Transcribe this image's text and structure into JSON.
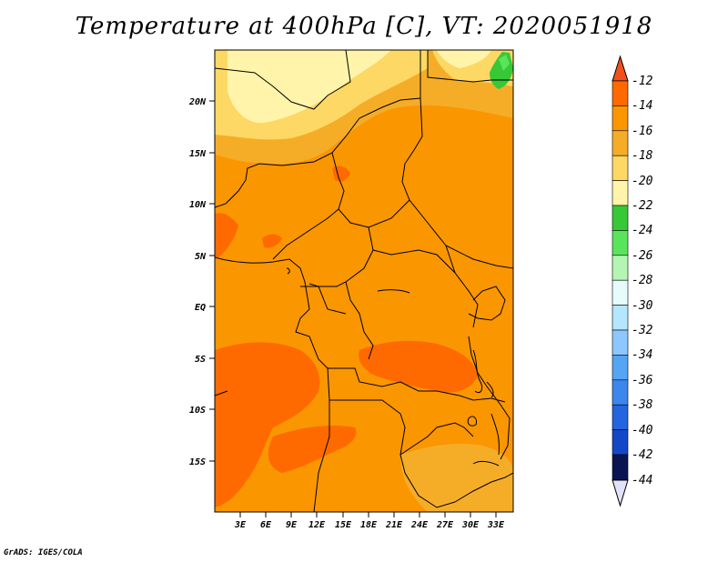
{
  "title": "Temperature at 400hPa [C], VT: 2020051918",
  "credit": "GrADS: IGES/COLA",
  "map": {
    "lon_range": [
      0,
      35
    ],
    "lat_range": [
      -20,
      25
    ],
    "lat_ticks": [
      {
        "value": 20,
        "label": "20N"
      },
      {
        "value": 15,
        "label": "15N"
      },
      {
        "value": 10,
        "label": "10N"
      },
      {
        "value": 5,
        "label": "5N"
      },
      {
        "value": 0,
        "label": "EQ"
      },
      {
        "value": -5,
        "label": "5S"
      },
      {
        "value": -10,
        "label": "10S"
      },
      {
        "value": -15,
        "label": "15S"
      }
    ],
    "lon_ticks": [
      {
        "value": 3,
        "label": "3E"
      },
      {
        "value": 6,
        "label": "6E"
      },
      {
        "value": 9,
        "label": "9E"
      },
      {
        "value": 12,
        "label": "12E"
      },
      {
        "value": 15,
        "label": "15E"
      },
      {
        "value": 18,
        "label": "18E"
      },
      {
        "value": 21,
        "label": "21E"
      },
      {
        "value": 24,
        "label": "24E"
      },
      {
        "value": 27,
        "label": "27E"
      },
      {
        "value": 30,
        "label": "30E"
      },
      {
        "value": 33,
        "label": "33E"
      }
    ]
  },
  "colorbar": {
    "levels": [
      "-12",
      "-14",
      "-16",
      "-18",
      "-20",
      "-22",
      "-24",
      "-26",
      "-28",
      "-30",
      "-32",
      "-34",
      "-36",
      "-38",
      "-40",
      "-42",
      "-44"
    ],
    "colors": [
      "#f0501e",
      "#ff6a00",
      "#fa9600",
      "#f5ad28",
      "#fed864",
      "#fff4aa",
      "#36c837",
      "#5ae45c",
      "#b4f5b4",
      "#e6fcfc",
      "#b4e6ff",
      "#8cc8ff",
      "#55a5f5",
      "#3c86ee",
      "#2364e1",
      "#1447c8",
      "#0c2896",
      "#0a1450",
      "#e1e1fa"
    ]
  }
}
